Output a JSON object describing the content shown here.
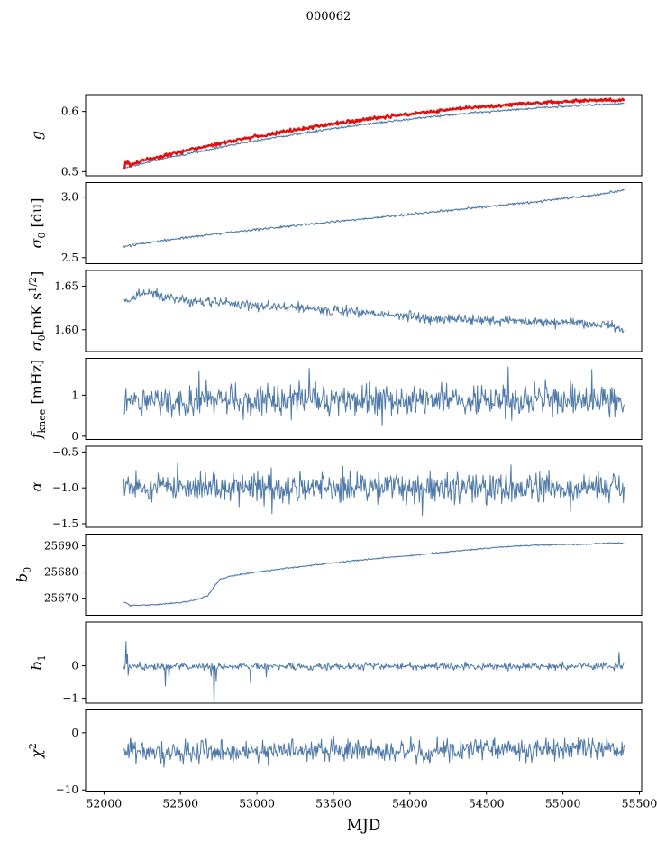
{
  "colors": {
    "line_blue": "#4e79a7",
    "line_red": "#e01010",
    "axis": "#000000",
    "background": "#ffffff"
  },
  "chart_data": {
    "type": "line",
    "title": "000062",
    "xlabel": "MJD",
    "xlim": [
      51880,
      55515
    ],
    "x_ticks": [
      {
        "v": 52000,
        "label": "52000"
      },
      {
        "v": 52500,
        "label": "52500"
      },
      {
        "v": 53000,
        "label": "53000"
      },
      {
        "v": 53500,
        "label": "53500"
      },
      {
        "v": 54000,
        "label": "54000"
      },
      {
        "v": 54500,
        "label": "54500"
      },
      {
        "v": 55000,
        "label": "55000"
      },
      {
        "v": 55500,
        "label": "55500"
      }
    ],
    "panels": [
      {
        "id": "g",
        "ylabel": "g",
        "ylabel_parts": [
          {
            "t": "g",
            "it": 1
          }
        ],
        "ylim": [
          0.493,
          0.628
        ],
        "yticks": [
          {
            "v": 0.5,
            "label": "0.5"
          },
          {
            "v": 0.6,
            "label": "0.6"
          }
        ],
        "series": [
          {
            "name": "g-blue",
            "color": "#4e79a7",
            "width": 1.1,
            "seed": 21,
            "n": 650,
            "noise": 0.0009,
            "trend": [
              [
                52130,
                0.506
              ],
              [
                52300,
                0.5165
              ],
              [
                52600,
                0.5325
              ],
              [
                52900,
                0.5475
              ],
              [
                53200,
                0.56
              ],
              [
                53500,
                0.5715
              ],
              [
                53800,
                0.5815
              ],
              [
                54100,
                0.59
              ],
              [
                54400,
                0.5975
              ],
              [
                54700,
                0.6035
              ],
              [
                55000,
                0.6085
              ],
              [
                55200,
                0.611
              ],
              [
                55400,
                0.6135
              ]
            ]
          },
          {
            "name": "g-red",
            "color": "#e01010",
            "width": 2.3,
            "seed": 12,
            "n": 650,
            "noise": 0.0012,
            "noise_anchors": [
              [
                52130,
                0.0065
              ],
              [
                52175,
                0.003
              ],
              [
                52250,
                0.0015
              ],
              [
                55400,
                0.0012
              ]
            ],
            "trend": [
              [
                52130,
                0.511
              ],
              [
                52300,
                0.5215
              ],
              [
                52600,
                0.5385
              ],
              [
                52900,
                0.554
              ],
              [
                53200,
                0.5675
              ],
              [
                53500,
                0.5795
              ],
              [
                53800,
                0.59
              ],
              [
                54100,
                0.599
              ],
              [
                54400,
                0.6065
              ],
              [
                54700,
                0.6125
              ],
              [
                55000,
                0.6165
              ],
              [
                55200,
                0.6185
              ],
              [
                55400,
                0.6195
              ]
            ]
          }
        ]
      },
      {
        "id": "sigma0-du",
        "ylabel": "σ0 [du]",
        "ylabel_parts": [
          {
            "t": "σ",
            "it": 1
          },
          {
            "t": "0",
            "sub": 1
          },
          {
            "t": " [du]"
          }
        ],
        "ylim": [
          2.45,
          3.12
        ],
        "yticks": [
          {
            "v": 2.5,
            "label": "2.5"
          },
          {
            "v": 3.0,
            "label": "3.0"
          }
        ],
        "series": [
          {
            "name": "sigma0-du",
            "color": "#4e79a7",
            "width": 1.1,
            "seed": 31,
            "n": 650,
            "noise": 0.005,
            "trend": [
              [
                52130,
                2.59
              ],
              [
                52400,
                2.645
              ],
              [
                52700,
                2.692
              ],
              [
                53000,
                2.732
              ],
              [
                53300,
                2.77
              ],
              [
                53600,
                2.808
              ],
              [
                54000,
                2.858
              ],
              [
                54400,
                2.908
              ],
              [
                54800,
                2.958
              ],
              [
                55100,
                3.0
              ],
              [
                55300,
                3.035
              ],
              [
                55400,
                3.06
              ]
            ]
          }
        ]
      },
      {
        "id": "sigma0-mk",
        "ylabel": "σ0[mK s1/2]",
        "ylabel_parts": [
          {
            "t": "σ",
            "it": 1
          },
          {
            "t": "0",
            "sub": 1
          },
          {
            "t": "[mK s"
          },
          {
            "t": "1/2",
            "sup": 1
          },
          {
            "t": "]"
          }
        ],
        "ylim": [
          1.575,
          1.668
        ],
        "yticks": [
          {
            "v": 1.6,
            "label": "1.60"
          },
          {
            "v": 1.65,
            "label": "1.65"
          }
        ],
        "series": [
          {
            "name": "sigma0-mk",
            "color": "#4e79a7",
            "width": 1.0,
            "seed": 41,
            "n": 700,
            "noise": 0.003,
            "trend": [
              [
                52130,
                1.6315
              ],
              [
                52220,
                1.6405
              ],
              [
                52300,
                1.6425
              ],
              [
                52380,
                1.638
              ],
              [
                52500,
                1.6345
              ],
              [
                52650,
                1.6315
              ],
              [
                52800,
                1.6305
              ],
              [
                53000,
                1.6275
              ],
              [
                53200,
                1.6255
              ],
              [
                53400,
                1.6235
              ],
              [
                53600,
                1.6205
              ],
              [
                53800,
                1.6185
              ],
              [
                54000,
                1.6155
              ],
              [
                54200,
                1.6125
              ],
              [
                54400,
                1.6115
              ],
              [
                54600,
                1.6105
              ],
              [
                54800,
                1.6095
              ],
              [
                55000,
                1.6085
              ],
              [
                55150,
                1.6075
              ],
              [
                55300,
                1.6065
              ],
              [
                55360,
                1.601
              ],
              [
                55400,
                1.5985
              ]
            ]
          }
        ]
      },
      {
        "id": "f-knee",
        "ylabel": "f_knee [mHz]",
        "ylabel_parts": [
          {
            "t": "f",
            "it": 1
          },
          {
            "t": "knee",
            "sub": 1
          },
          {
            "t": " [mHz]"
          }
        ],
        "ylim": [
          -0.08,
          1.9
        ],
        "yticks": [
          {
            "v": 0,
            "label": "0"
          },
          {
            "v": 1,
            "label": "1"
          }
        ],
        "series": [
          {
            "name": "f-knee",
            "color": "#4e79a7",
            "width": 1.0,
            "seed": 51,
            "n": 700,
            "noise": 0.19,
            "trend": [
              [
                52130,
                0.88
              ],
              [
                55400,
                0.87
              ]
            ],
            "spikes": [
              [
                52620,
                0.72
              ],
              [
                53340,
                0.78
              ],
              [
                53820,
                -0.62
              ],
              [
                54640,
                0.82
              ],
              [
                55190,
                0.76
              ]
            ]
          }
        ]
      },
      {
        "id": "alpha",
        "ylabel": "α",
        "ylabel_parts": [
          {
            "t": "α",
            "it": 1
          }
        ],
        "ylim": [
          -1.55,
          -0.42
        ],
        "yticks": [
          {
            "v": -0.5,
            "label": "−0.5"
          },
          {
            "v": -1.0,
            "label": "−1.0"
          },
          {
            "v": -1.5,
            "label": "−1.5"
          }
        ],
        "series": [
          {
            "name": "alpha",
            "color": "#4e79a7",
            "width": 1.0,
            "seed": 61,
            "n": 700,
            "noise": 0.1,
            "trend": [
              [
                52130,
                -1.0
              ],
              [
                55400,
                -1.0
              ]
            ],
            "spikes": [
              [
                52480,
                0.34
              ],
              [
                53100,
                -0.36
              ],
              [
                53560,
                0.3
              ],
              [
                54080,
                -0.38
              ],
              [
                54660,
                0.32
              ],
              [
                55050,
                -0.33
              ]
            ]
          }
        ]
      },
      {
        "id": "b0",
        "ylabel": "b0",
        "ylabel_parts": [
          {
            "t": "b",
            "it": 1
          },
          {
            "t": "0",
            "sub": 1
          }
        ],
        "ylim": [
          25663.5,
          25694.5
        ],
        "yticks": [
          {
            "v": 25670,
            "label": "25670"
          },
          {
            "v": 25680,
            "label": "25680"
          },
          {
            "v": 25690,
            "label": "25690"
          }
        ],
        "series": [
          {
            "name": "b0",
            "color": "#4e79a7",
            "width": 1.1,
            "seed": 71,
            "n": 650,
            "noise": 0.12,
            "trend": [
              [
                52130,
                25668.6
              ],
              [
                52170,
                25667.3
              ],
              [
                52300,
                25667.4
              ],
              [
                52500,
                25668.3
              ],
              [
                52620,
                25669.6
              ],
              [
                52680,
                25671.0
              ],
              [
                52720,
                25674.5
              ],
              [
                52760,
                25677.3
              ],
              [
                52820,
                25678.3
              ],
              [
                52950,
                25679.6
              ],
              [
                53100,
                25680.8
              ],
              [
                53400,
                25682.9
              ],
              [
                53700,
                25684.8
              ],
              [
                54000,
                25686.3
              ],
              [
                54300,
                25688.0
              ],
              [
                54600,
                25689.6
              ],
              [
                54800,
                25690.2
              ],
              [
                55000,
                25690.5
              ],
              [
                55150,
                25690.6
              ],
              [
                55300,
                25691.1
              ],
              [
                55400,
                25691.0
              ]
            ]
          }
        ]
      },
      {
        "id": "b1",
        "ylabel": "b1",
        "ylabel_parts": [
          {
            "t": "b",
            "it": 1
          },
          {
            "t": "1",
            "sub": 1
          }
        ],
        "ylim": [
          -1.15,
          1.35
        ],
        "yticks": [
          {
            "v": -1,
            "label": "−1"
          },
          {
            "v": 0,
            "label": "0"
          }
        ],
        "series": [
          {
            "name": "b1",
            "color": "#4e79a7",
            "width": 1.0,
            "seed": 81,
            "n": 700,
            "noise": 0.055,
            "trend": [
              [
                52130,
                -0.02
              ],
              [
                55400,
                -0.02
              ]
            ],
            "spikes": [
              [
                52143,
                0.77
              ],
              [
                52152,
                0.38
              ],
              [
                52160,
                -0.27
              ],
              [
                52400,
                -0.6
              ],
              [
                52425,
                -0.36
              ],
              [
                52700,
                -0.3
              ],
              [
                52718,
                -1.2
              ],
              [
                52732,
                -0.44
              ],
              [
                52958,
                -0.5
              ],
              [
                53060,
                -0.32
              ],
              [
                55368,
                0.44
              ]
            ]
          }
        ]
      },
      {
        "id": "chi2",
        "ylabel": "χ2",
        "ylabel_parts": [
          {
            "t": "χ",
            "it": 1
          },
          {
            "t": "2",
            "sup": 1
          }
        ],
        "ylim": [
          -10.2,
          4.0
        ],
        "yticks": [
          {
            "v": -10,
            "label": "−10"
          },
          {
            "v": 0,
            "label": "0"
          }
        ],
        "series": [
          {
            "name": "chi2",
            "color": "#4e79a7",
            "width": 1.0,
            "seed": 91,
            "n": 700,
            "noise": 0.95,
            "trend": [
              [
                52130,
                -3.1
              ],
              [
                52400,
                -3.45
              ],
              [
                52700,
                -3.3
              ],
              [
                53000,
                -3.15
              ],
              [
                53600,
                -3.05
              ],
              [
                54200,
                -3.0
              ],
              [
                54800,
                -2.85
              ],
              [
                55200,
                -2.8
              ],
              [
                55400,
                -2.95
              ]
            ],
            "spikes": [
              [
                52210,
                -2.3
              ],
              [
                52390,
                -2.6
              ],
              [
                52620,
                -2.1
              ],
              [
                53570,
                -1.9
              ],
              [
                54120,
                -1.7
              ],
              [
                54890,
                1.9
              ]
            ]
          }
        ]
      }
    ]
  }
}
